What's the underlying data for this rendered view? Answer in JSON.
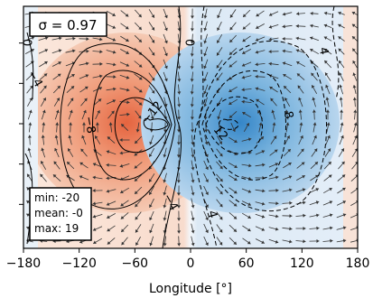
{
  "chart_data": {
    "type": "heatmap",
    "title": "",
    "xlabel": "Longitude [°]",
    "ylabel": "",
    "xlim": [
      -180,
      180
    ],
    "x_ticks": [
      -180,
      -120,
      -60,
      0,
      60,
      120,
      180
    ],
    "x_tick_labels": [
      "−180",
      "−120",
      "−60",
      "0",
      "60",
      "120",
      "180"
    ],
    "y_tick_count": 5,
    "sigma_label": "σ = 0.97",
    "stats": {
      "min_label": "min: -20",
      "mean_label": "mean: -0",
      "max_label": "max: 19"
    },
    "min": -20,
    "mean": 0,
    "max": 19,
    "contour_levels": [
      -12,
      -8,
      -4,
      0,
      4,
      8,
      12
    ],
    "contour_labels": [
      {
        "text": "0",
        "lon": -177,
        "lat": 0.7,
        "rot": 90
      },
      {
        "text": "−4",
        "lon": -168,
        "lat": 0.4,
        "rot": 60
      },
      {
        "text": "−8",
        "lon": -109,
        "lat": 0.02,
        "rot": 80
      },
      {
        "text": "−12",
        "lon": -41,
        "lat": 0.12,
        "rot": -50
      },
      {
        "text": "−4",
        "lon": -22,
        "lat": -0.62,
        "rot": 60
      },
      {
        "text": "0",
        "lon": -2,
        "lat": 0.7,
        "rot": 90
      },
      {
        "text": "4",
        "lon": 23,
        "lat": -0.72,
        "rot": 75
      },
      {
        "text": "12",
        "lon": 32,
        "lat": -0.05,
        "rot": 50
      },
      {
        "text": "8",
        "lon": 105,
        "lat": 0.1,
        "rot": 75
      },
      {
        "text": "4",
        "lon": 143,
        "lat": 0.63,
        "rot": 80
      }
    ],
    "colors": {
      "negative": "#e8734f",
      "positive": "#3d8fce",
      "neutral": "#f7f7f7"
    }
  }
}
